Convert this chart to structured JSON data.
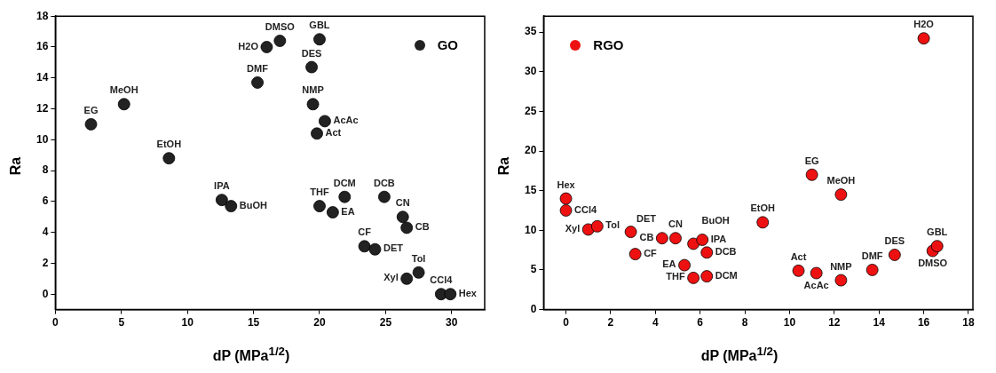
{
  "chart_data": [
    {
      "type": "scatter",
      "xlabel": "dP (MPa$^{1/2}$)",
      "ylabel": "Ra",
      "xlim": [
        0,
        32.5
      ],
      "ylim": [
        -1,
        18
      ],
      "xticks": [
        0,
        5,
        10,
        15,
        20,
        25,
        30
      ],
      "yticks": [
        0,
        2,
        4,
        6,
        8,
        10,
        12,
        14,
        16,
        18
      ],
      "legend": "top right",
      "marker": "circle",
      "grid": false,
      "series": [
        {
          "name": "GO",
          "color": "#222222",
          "x": [
            2.7,
            5.2,
            8.6,
            12.6,
            13.3,
            15.3,
            16.0,
            17.0,
            20.0,
            19.4,
            19.5,
            20.4,
            19.8,
            20.0,
            21.0,
            21.9,
            24.9,
            26.3,
            26.6,
            23.4,
            24.2,
            26.6,
            27.5,
            29.2,
            29.9
          ],
          "values": [
            11,
            12.3,
            8.8,
            6.1,
            5.7,
            13.7,
            16.0,
            16.4,
            16.5,
            14.7,
            12.3,
            11.2,
            10.4,
            5.7,
            5.3,
            6.3,
            6.3,
            5.0,
            4.3,
            3.1,
            2.9,
            1.0,
            1.4,
            0,
            0
          ]
        }
      ],
      "annotations": [
        {
          "text": "EG",
          "x": 2.7,
          "y": 11
        },
        {
          "text": "MeOH",
          "x": 5.2,
          "y": 12.3
        },
        {
          "text": "EtOH",
          "x": 8.6,
          "y": 8.8
        },
        {
          "text": "IPA",
          "x": 12.6,
          "y": 6.1
        },
        {
          "text": "BuOH",
          "x": 13.3,
          "y": 5.7
        },
        {
          "text": "DMF",
          "x": 15.3,
          "y": 13.7
        },
        {
          "text": "H2O",
          "x": 16.0,
          "y": 16.0
        },
        {
          "text": "DMSO",
          "x": 17.0,
          "y": 16.4
        },
        {
          "text": "GBL",
          "x": 20.0,
          "y": 16.5
        },
        {
          "text": "DES",
          "x": 19.4,
          "y": 14.7
        },
        {
          "text": "NMP",
          "x": 19.5,
          "y": 12.3
        },
        {
          "text": "AcAc",
          "x": 20.4,
          "y": 11.2
        },
        {
          "text": "Act",
          "x": 19.8,
          "y": 10.4
        },
        {
          "text": "THF",
          "x": 20.0,
          "y": 5.7
        },
        {
          "text": "EA",
          "x": 21.0,
          "y": 5.3
        },
        {
          "text": "DCM",
          "x": 21.9,
          "y": 6.3
        },
        {
          "text": "DCB",
          "x": 24.9,
          "y": 6.3
        },
        {
          "text": "CN",
          "x": 26.3,
          "y": 5.0
        },
        {
          "text": "CB",
          "x": 26.6,
          "y": 4.3
        },
        {
          "text": "CF",
          "x": 23.4,
          "y": 3.1
        },
        {
          "text": "DET",
          "x": 24.2,
          "y": 2.9
        },
        {
          "text": "Xyl",
          "x": 26.6,
          "y": 1.0
        },
        {
          "text": "Tol",
          "x": 27.5,
          "y": 1.4
        },
        {
          "text": "CCl4",
          "x": 29.2,
          "y": 0
        },
        {
          "text": "Hex",
          "x": 29.9,
          "y": 0
        }
      ]
    },
    {
      "type": "scatter",
      "xlabel": "dP (MPa$^{1/2}$)",
      "ylabel": "Ra",
      "xlim": [
        -1,
        18.2
      ],
      "ylim": [
        0,
        37
      ],
      "xticks": [
        0,
        2,
        4,
        6,
        8,
        10,
        12,
        14,
        16,
        18
      ],
      "yticks": [
        0,
        5,
        10,
        15,
        20,
        25,
        30,
        35
      ],
      "legend": "top left",
      "marker": "circle",
      "grid": false,
      "series": [
        {
          "name": "RGO",
          "color": "#ee1111",
          "x": [
            0,
            0,
            1.0,
            1.4,
            2.9,
            3.1,
            4.3,
            4.9,
            5.7,
            6.1,
            6.3,
            5.3,
            5.7,
            6.3,
            8.8,
            11.0,
            12.3,
            10.4,
            11.2,
            12.3,
            13.7,
            14.7,
            16.4,
            16.6,
            16.0
          ],
          "values": [
            14,
            12.5,
            10.1,
            10.5,
            9.8,
            7,
            9.0,
            9.0,
            8.3,
            8.8,
            7.2,
            5.6,
            4.0,
            4.2,
            11.0,
            17.0,
            14.5,
            4.9,
            4.6,
            3.7,
            5.0,
            6.9,
            7.4,
            8.0,
            34.2
          ]
        }
      ],
      "annotations": [
        {
          "text": "Hex",
          "x": 0,
          "y": 14
        },
        {
          "text": "CCl4",
          "x": 0,
          "y": 12.5
        },
        {
          "text": "Xyl",
          "x": 1.0,
          "y": 10.1
        },
        {
          "text": "Tol",
          "x": 1.4,
          "y": 10.5
        },
        {
          "text": "DET",
          "x": 2.9,
          "y": 9.8
        },
        {
          "text": "CF",
          "x": 3.1,
          "y": 7
        },
        {
          "text": "CB",
          "x": 4.3,
          "y": 9.0
        },
        {
          "text": "CN",
          "x": 4.9,
          "y": 9.0
        },
        {
          "text": "BuOH",
          "x": 5.7,
          "y": 8.3
        },
        {
          "text": "IPA",
          "x": 6.1,
          "y": 8.8
        },
        {
          "text": "DCB",
          "x": 6.3,
          "y": 7.2
        },
        {
          "text": "EA",
          "x": 5.3,
          "y": 5.6
        },
        {
          "text": "THF",
          "x": 5.7,
          "y": 4.0
        },
        {
          "text": "DCM",
          "x": 6.3,
          "y": 4.2
        },
        {
          "text": "EtOH",
          "x": 8.8,
          "y": 11.0
        },
        {
          "text": "EG",
          "x": 11.0,
          "y": 17.0
        },
        {
          "text": "MeOH",
          "x": 12.3,
          "y": 14.5
        },
        {
          "text": "Act",
          "x": 10.4,
          "y": 4.9
        },
        {
          "text": "AcAc",
          "x": 11.2,
          "y": 4.6
        },
        {
          "text": "NMP",
          "x": 12.3,
          "y": 3.7
        },
        {
          "text": "DMF",
          "x": 13.7,
          "y": 5.0
        },
        {
          "text": "DES",
          "x": 14.7,
          "y": 6.9
        },
        {
          "text": "DMSO",
          "x": 16.4,
          "y": 7.4
        },
        {
          "text": "GBL",
          "x": 16.6,
          "y": 8.0
        },
        {
          "text": "H2O",
          "x": 16.0,
          "y": 34.2
        }
      ]
    }
  ]
}
